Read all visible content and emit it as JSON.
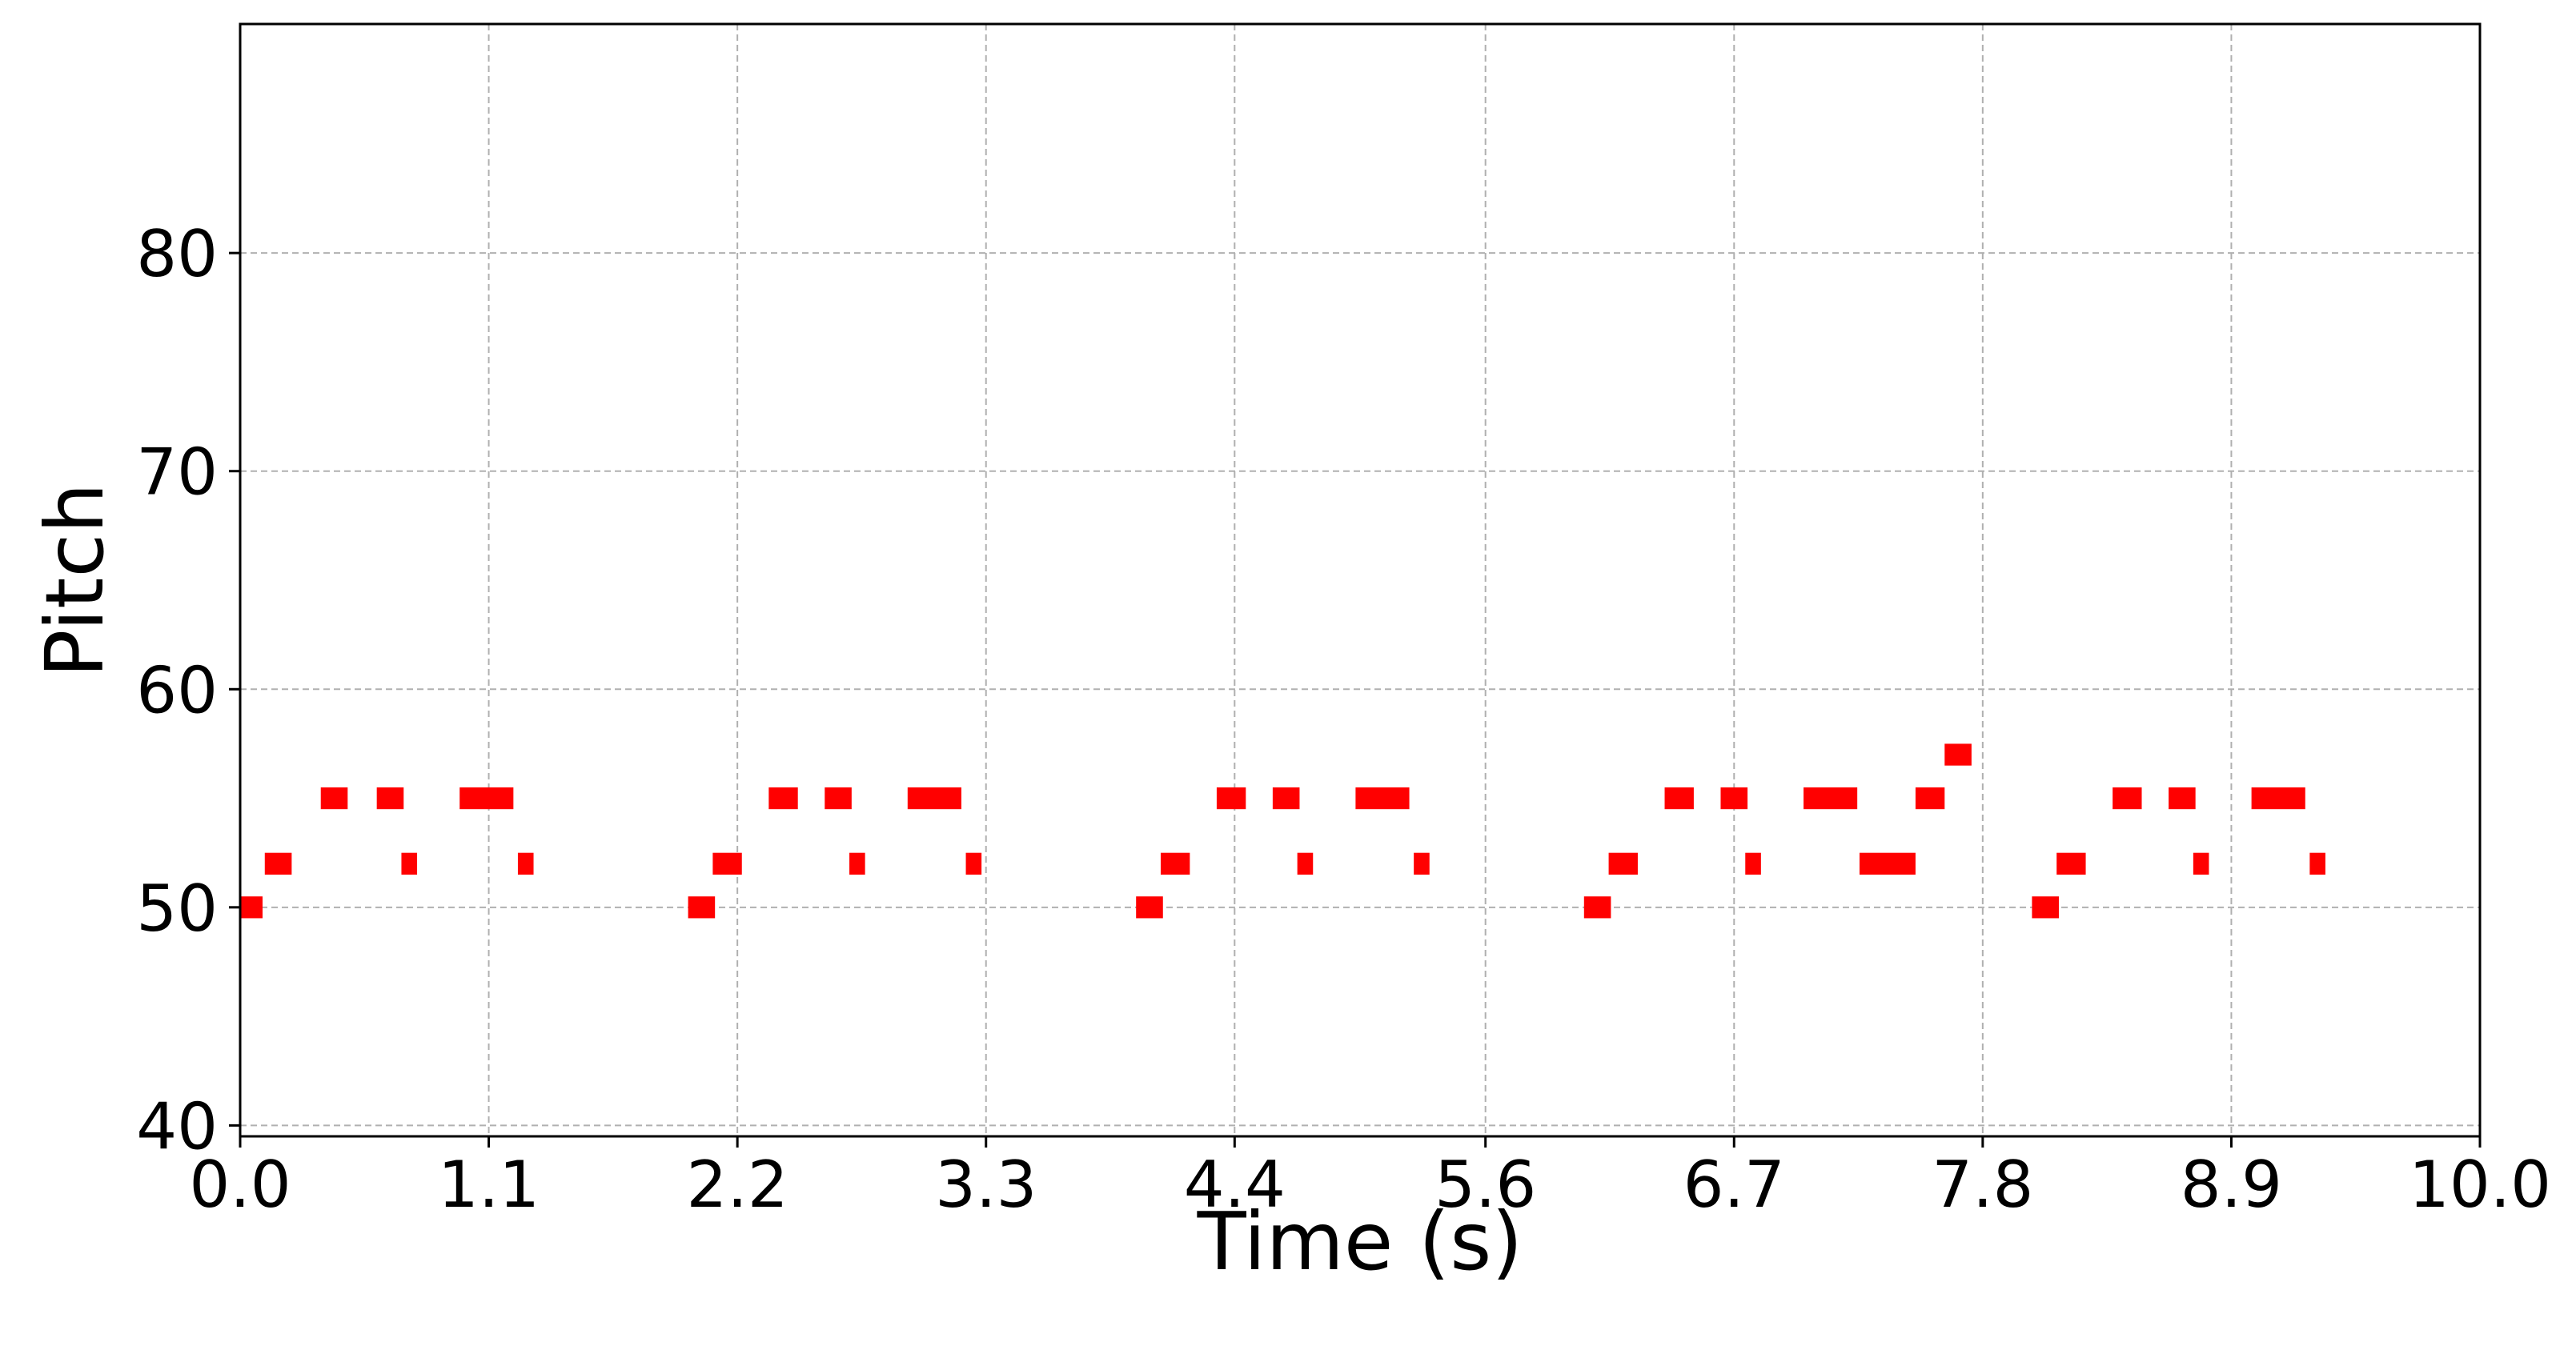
{
  "chart_data": {
    "type": "piano-roll",
    "title": "",
    "xlabel": "Time (s)",
    "ylabel": "Pitch",
    "xlim": [
      0.0,
      10.0
    ],
    "ylim": [
      39.5,
      90.5
    ],
    "xticks": [
      "0.0",
      "1.1",
      "2.2",
      "3.3",
      "4.4",
      "5.6",
      "6.7",
      "7.8",
      "8.9",
      "10.0"
    ],
    "xtick_values": [
      0.0,
      1.11,
      2.22,
      3.33,
      4.44,
      5.56,
      6.67,
      7.78,
      8.89,
      10.0
    ],
    "yticks": [
      "40",
      "50",
      "60",
      "70",
      "80"
    ],
    "ytick_values": [
      40,
      50,
      60,
      70,
      80
    ],
    "grid": true,
    "note_color": "#ff0000",
    "notes": [
      {
        "pitch": 50,
        "start": 0.0,
        "end": 0.1
      },
      {
        "pitch": 52,
        "start": 0.11,
        "end": 0.23
      },
      {
        "pitch": 55,
        "start": 0.36,
        "end": 0.48
      },
      {
        "pitch": 55,
        "start": 0.61,
        "end": 0.73
      },
      {
        "pitch": 52,
        "start": 0.72,
        "end": 0.79
      },
      {
        "pitch": 55,
        "start": 0.98,
        "end": 1.22
      },
      {
        "pitch": 52,
        "start": 1.24,
        "end": 1.31
      },
      {
        "pitch": 50,
        "start": 2.0,
        "end": 2.12
      },
      {
        "pitch": 52,
        "start": 2.11,
        "end": 2.24
      },
      {
        "pitch": 55,
        "start": 2.36,
        "end": 2.49
      },
      {
        "pitch": 55,
        "start": 2.61,
        "end": 2.73
      },
      {
        "pitch": 52,
        "start": 2.72,
        "end": 2.79
      },
      {
        "pitch": 55,
        "start": 2.98,
        "end": 3.22
      },
      {
        "pitch": 52,
        "start": 3.24,
        "end": 3.31
      },
      {
        "pitch": 50,
        "start": 4.0,
        "end": 4.12
      },
      {
        "pitch": 52,
        "start": 4.11,
        "end": 4.24
      },
      {
        "pitch": 55,
        "start": 4.36,
        "end": 4.49
      },
      {
        "pitch": 55,
        "start": 4.61,
        "end": 4.73
      },
      {
        "pitch": 52,
        "start": 4.72,
        "end": 4.79
      },
      {
        "pitch": 55,
        "start": 4.98,
        "end": 5.22
      },
      {
        "pitch": 52,
        "start": 5.24,
        "end": 5.31
      },
      {
        "pitch": 50,
        "start": 6.0,
        "end": 6.12
      },
      {
        "pitch": 52,
        "start": 6.11,
        "end": 6.24
      },
      {
        "pitch": 55,
        "start": 6.36,
        "end": 6.49
      },
      {
        "pitch": 55,
        "start": 6.61,
        "end": 6.73
      },
      {
        "pitch": 52,
        "start": 6.72,
        "end": 6.79
      },
      {
        "pitch": 55,
        "start": 6.98,
        "end": 7.22
      },
      {
        "pitch": 52,
        "start": 7.23,
        "end": 7.48
      },
      {
        "pitch": 55,
        "start": 7.48,
        "end": 7.61
      },
      {
        "pitch": 57,
        "start": 7.61,
        "end": 7.73
      },
      {
        "pitch": 50,
        "start": 8.0,
        "end": 8.12
      },
      {
        "pitch": 52,
        "start": 8.11,
        "end": 8.24
      },
      {
        "pitch": 55,
        "start": 8.36,
        "end": 8.49
      },
      {
        "pitch": 55,
        "start": 8.61,
        "end": 8.73
      },
      {
        "pitch": 52,
        "start": 8.72,
        "end": 8.79
      },
      {
        "pitch": 55,
        "start": 8.98,
        "end": 9.22
      },
      {
        "pitch": 52,
        "start": 9.24,
        "end": 9.31
      }
    ]
  }
}
